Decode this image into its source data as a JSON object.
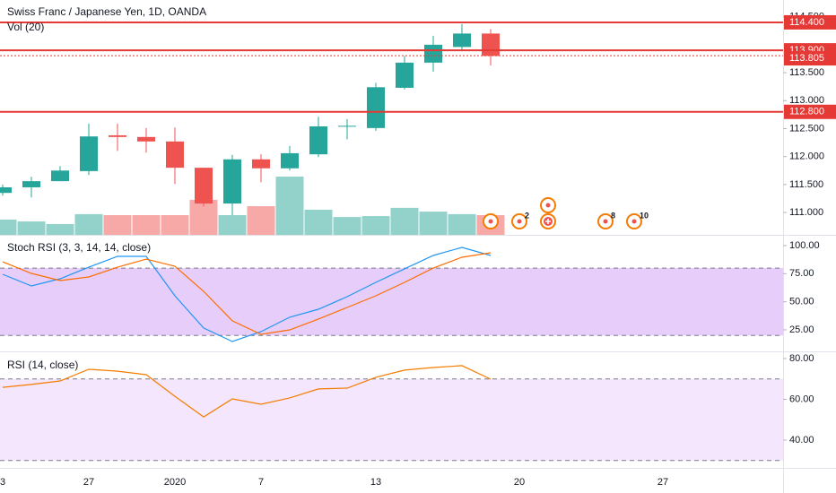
{
  "chart_data": [
    {
      "type": "candlestick",
      "title": "Swiss Franc / Japanese Yen, 1D, OANDA",
      "subtitle": "Vol (20)",
      "x": [
        0,
        1,
        2,
        3,
        4,
        5,
        6,
        7,
        8,
        9,
        10,
        11,
        12,
        13,
        14,
        15,
        16,
        17
      ],
      "open": [
        111.35,
        111.45,
        111.56,
        111.74,
        112.38,
        112.35,
        112.27,
        111.8,
        111.16,
        111.95,
        111.79,
        112.04,
        112.54,
        112.51,
        113.23,
        113.68,
        113.96,
        114.2
      ],
      "close": [
        111.45,
        111.56,
        111.75,
        112.36,
        112.35,
        112.27,
        111.8,
        111.16,
        111.95,
        111.79,
        112.06,
        112.54,
        112.55,
        113.24,
        113.68,
        114.0,
        114.2,
        113.8
      ],
      "high": [
        111.5,
        111.64,
        111.83,
        112.59,
        112.59,
        112.51,
        112.52,
        111.8,
        112.03,
        112.04,
        112.19,
        112.71,
        112.67,
        113.32,
        113.8,
        114.16,
        114.37,
        114.28
      ],
      "low": [
        111.3,
        111.27,
        111.56,
        111.67,
        112.1,
        112.07,
        111.51,
        111.11,
        110.95,
        111.54,
        111.75,
        111.99,
        112.31,
        112.46,
        113.2,
        113.52,
        113.9,
        113.63
      ],
      "volume": [
        6.5,
        5.7,
        4.6,
        8.8,
        8.4,
        8.4,
        8.4,
        14.9,
        8.4,
        12.2,
        24.8,
        10.7,
        7.6,
        8.0,
        11.5,
        9.9,
        8.8,
        8.4
      ],
      "vlim": [
        0,
        100
      ],
      "up_color": "#26a69a",
      "down_color": "#ef5350",
      "volume_up_color": "#93d2cb",
      "volume_down_color": "#f7a9a7",
      "ylim": [
        110.6,
        114.8
      ],
      "yticks": [
        {
          "value": 111,
          "label": "111.000"
        },
        {
          "value": 111.5,
          "label": "111.500"
        },
        {
          "value": 112,
          "label": "112.000"
        },
        {
          "value": 112.5,
          "label": "112.500"
        },
        {
          "value": 113,
          "label": "113.000"
        },
        {
          "value": 113.5,
          "label": "113.500"
        },
        {
          "value": 114.5,
          "label": "114.500"
        }
      ],
      "xlim": [
        -0.09375,
        27.1875
      ],
      "xticks": [
        {
          "value": 0,
          "label": "3"
        },
        {
          "value": 3,
          "label": "27"
        },
        {
          "value": 6,
          "label": "2020"
        },
        {
          "value": 9,
          "label": "7"
        },
        {
          "value": 13,
          "label": "13"
        },
        {
          "value": 18,
          "label": "20"
        },
        {
          "value": 23,
          "label": "27"
        }
      ],
      "price_lines": [
        {
          "value": 114.4,
          "label": "114.400",
          "color": "#e53935",
          "style": "solid"
        },
        {
          "value": 113.9,
          "label": "113.900",
          "color": "#e53935",
          "style": "solid"
        },
        {
          "value": 113.805,
          "label": "113.805",
          "color": "#e53935",
          "style": "dotted"
        },
        {
          "value": 112.8,
          "label": "112.800",
          "color": "#e53935",
          "style": "solid"
        }
      ],
      "events": [
        {
          "x": 17
        },
        {
          "x": 18,
          "label": "2"
        },
        {
          "x": 19,
          "icon": "plus"
        },
        {
          "x": 19
        },
        {
          "x": 21,
          "label": "8"
        },
        {
          "x": 22,
          "label": "10"
        }
      ]
    },
    {
      "type": "line",
      "title": "Stoch RSI (3, 3, 14, 14, close)",
      "x": [
        0,
        1,
        2,
        3,
        4,
        5,
        6,
        7,
        8,
        9,
        10,
        11,
        12,
        13,
        14,
        15,
        16,
        17
      ],
      "series": [
        {
          "color": "#2196f3",
          "values": [
            74.5,
            64.1,
            70.5,
            80.8,
            90.4,
            90.4,
            55.3,
            26.6,
            14.6,
            23.4,
            36.2,
            43.3,
            54.5,
            67.3,
            79.3,
            91.2,
            98.4,
            91.2
          ]
        },
        {
          "color": "#ff6d00",
          "values": [
            85.6,
            75.3,
            68.9,
            72.1,
            80.8,
            88.0,
            81.6,
            59.3,
            33.0,
            21.0,
            25.0,
            34.6,
            44.9,
            55.3,
            67.3,
            80.0,
            89.6,
            93.6
          ]
        }
      ],
      "ylim": [
        5.8,
        109.6
      ],
      "yticks": [
        {
          "value": 25,
          "label": "25.00"
        },
        {
          "value": 50,
          "label": "50.00"
        },
        {
          "value": 75,
          "label": "75.00"
        },
        {
          "value": 100,
          "label": "100.00"
        }
      ],
      "band": [
        20,
        80
      ],
      "band_color": "#e6cdfa"
    },
    {
      "type": "line",
      "title": "RSI (14, close)",
      "x": [
        0,
        1,
        2,
        3,
        4,
        5,
        6,
        7,
        8,
        9,
        10,
        11,
        12,
        13,
        14,
        15,
        16,
        17
      ],
      "series": [
        {
          "color": "#f57c00",
          "values": [
            65.9,
            67.3,
            69.0,
            74.7,
            73.8,
            72.1,
            61.5,
            51.4,
            60.2,
            57.6,
            60.7,
            65.1,
            65.5,
            70.8,
            74.3,
            75.6,
            76.5,
            69.9
          ]
        }
      ],
      "ylim": [
        26.4,
        83.5
      ],
      "yticks": [
        {
          "value": 40,
          "label": "40.00"
        },
        {
          "value": 60,
          "label": "60.00"
        },
        {
          "value": 80,
          "label": "80.00"
        }
      ],
      "band": [
        30,
        70
      ],
      "band_color": "#f4e6fc"
    }
  ]
}
